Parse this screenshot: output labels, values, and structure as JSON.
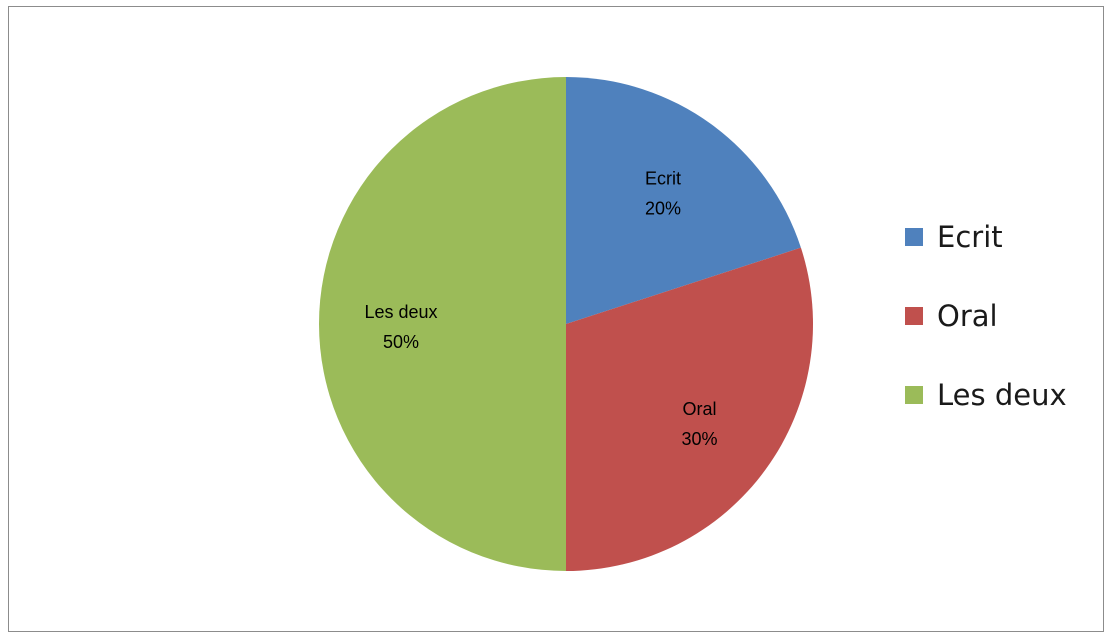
{
  "chart_data": {
    "type": "pie",
    "title": "",
    "categories": [
      "Ecrit",
      "Oral",
      "Les deux"
    ],
    "values": [
      20,
      30,
      50
    ],
    "value_labels": [
      "20%",
      "30%",
      "50%"
    ],
    "colors": [
      "#4f81bd",
      "#c0504d",
      "#9bbb59"
    ],
    "start_angle_deg": 0,
    "direction": "clockwise",
    "legend": {
      "position": "right",
      "entries": [
        "Ecrit",
        "Oral",
        "Les deux"
      ]
    }
  }
}
